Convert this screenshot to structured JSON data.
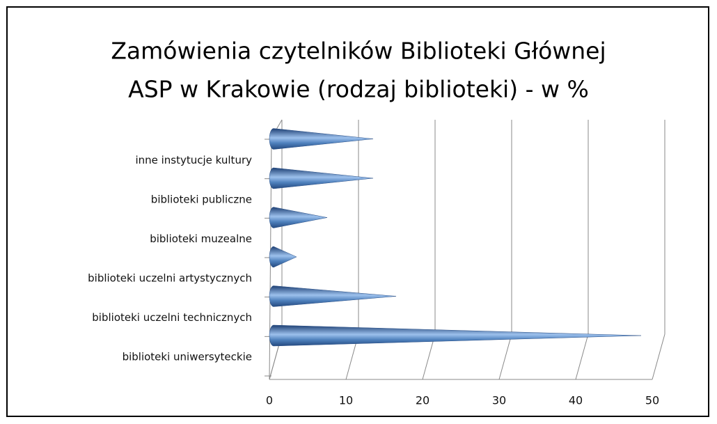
{
  "chart_data": {
    "type": "cone-bar",
    "title": [
      "Zamówienia czytelników Biblioteki Głównej",
      "ASP w Krakowie (rodzaj biblioteki) - w %"
    ],
    "categories": [
      "biblioteki uniwersyteckie",
      "biblioteki uczelni technicznych",
      "biblioteki uczelni artystycznych",
      "biblioteki muzealne",
      "biblioteki publiczne",
      "inne instytucje kultury"
    ],
    "values": [
      48,
      16,
      3,
      7,
      13,
      13
    ],
    "color": "#4f81bd",
    "xlim": [
      0,
      50
    ],
    "xticks": [
      0,
      10,
      20,
      30,
      40,
      50
    ],
    "grid": true
  }
}
